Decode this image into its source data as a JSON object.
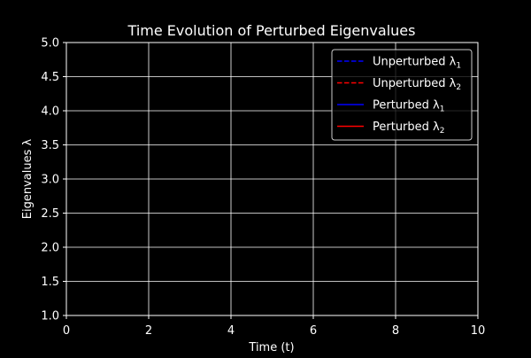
{
  "chart_data": {
    "type": "line",
    "title": "Time Evolution of Perturbed Eigenvalues",
    "xlabel": "Time (t)",
    "ylabel": "Eigenvalues λ",
    "xlim": [
      0,
      10
    ],
    "ylim": [
      1.0,
      5.0
    ],
    "xticks": [
      0,
      2,
      4,
      6,
      8,
      10
    ],
    "yticks": [
      1.0,
      1.5,
      2.0,
      2.5,
      3.0,
      3.5,
      4.0,
      4.5,
      5.0
    ],
    "xtick_labels": [
      "0",
      "2",
      "4",
      "6",
      "8",
      "10"
    ],
    "ytick_labels": [
      "1.0",
      "1.5",
      "2.0",
      "2.5",
      "3.0",
      "3.5",
      "4.0",
      "4.5",
      "5.0"
    ],
    "grid": true,
    "legend_position": "top-right",
    "background": "#000000",
    "foreground": "#ffffff",
    "series": [
      {
        "name": "Unperturbed λ1",
        "base": "Unperturbed λ",
        "sub": "1",
        "color": "#0000ff",
        "style": "dashed",
        "x": [],
        "y": []
      },
      {
        "name": "Unperturbed λ2",
        "base": "Unperturbed λ",
        "sub": "2",
        "color": "#ff0000",
        "style": "dashed",
        "x": [],
        "y": []
      },
      {
        "name": "Perturbed λ1",
        "base": "Perturbed λ",
        "sub": "1",
        "color": "#0000ff",
        "style": "solid",
        "x": [],
        "y": []
      },
      {
        "name": "Perturbed λ2",
        "base": "Perturbed λ",
        "sub": "2",
        "color": "#ff0000",
        "style": "solid",
        "x": [],
        "y": []
      }
    ]
  }
}
